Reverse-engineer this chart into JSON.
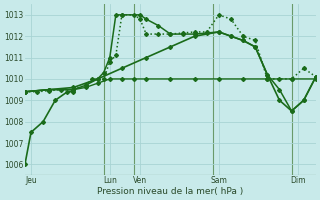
{
  "background_color": "#c8eaea",
  "grid_color": "#a8d4d4",
  "line_color": "#1a6b1a",
  "vline_color": "#6a9a6a",
  "title": "Pression niveau de la mer( hPa )",
  "ylim": [
    1005.5,
    1013.5
  ],
  "yticks": [
    1006,
    1007,
    1008,
    1009,
    1010,
    1011,
    1012,
    1013
  ],
  "xlim": [
    0,
    24
  ],
  "xtick_labels": [
    "Jeu",
    "Lun",
    "Ven",
    "Sam",
    "Dim"
  ],
  "xtick_positions": [
    0.5,
    7,
    9.5,
    16,
    22.5
  ],
  "vlines": [
    6.5,
    9,
    15.5,
    22
  ],
  "series": [
    {
      "x": [
        0,
        2,
        4,
        5,
        6,
        7,
        8,
        9,
        10,
        12,
        14,
        16,
        18,
        20,
        22,
        24
      ],
      "y": [
        1009.4,
        1009.5,
        1009.5,
        1009.6,
        1009.8,
        1010.0,
        1010.0,
        1010.0,
        1010.0,
        1010.0,
        1010.0,
        1010.0,
        1010.0,
        1010.0,
        1010.0,
        1010.0
      ],
      "marker": "D",
      "linestyle": "-",
      "linewidth": 1.0,
      "markersize": 2.0
    },
    {
      "x": [
        0,
        1,
        2,
        3,
        4,
        5,
        5.5,
        6.5,
        7,
        7.5,
        8,
        9,
        9.5,
        10,
        11,
        12,
        13,
        14,
        15,
        16,
        17,
        18,
        19,
        20,
        21,
        22,
        23,
        24
      ],
      "y": [
        1009.4,
        1009.4,
        1009.45,
        1009.5,
        1009.5,
        1009.7,
        1010.0,
        1010.0,
        1010.8,
        1011.1,
        1013.0,
        1013.0,
        1012.8,
        1012.1,
        1012.1,
        1012.1,
        1012.15,
        1012.2,
        1012.2,
        1013.0,
        1012.8,
        1012.0,
        1011.8,
        1010.0,
        1010.0,
        1010.0,
        1010.5,
        1010.1
      ],
      "marker": "D",
      "linestyle": ":",
      "linewidth": 1.1,
      "markersize": 2.0
    },
    {
      "x": [
        0,
        2,
        4,
        5,
        6,
        6.5,
        7,
        7.5,
        8,
        9.5,
        10,
        11,
        12,
        13,
        14,
        15,
        16,
        17,
        18,
        19,
        20,
        21,
        22,
        23,
        24
      ],
      "y": [
        1009.4,
        1009.5,
        1009.5,
        1009.7,
        1010.0,
        1010.3,
        1011.0,
        1013.0,
        1013.0,
        1013.0,
        1012.8,
        1012.5,
        1012.1,
        1012.1,
        1012.1,
        1012.15,
        1012.2,
        1012.0,
        1011.8,
        1011.5,
        1010.2,
        1009.5,
        1008.5,
        1009.0,
        1010.1
      ],
      "marker": "D",
      "linestyle": "-",
      "linewidth": 1.1,
      "markersize": 2.0
    },
    {
      "x": [
        0,
        2,
        4,
        6,
        8,
        10,
        12,
        14,
        16,
        17,
        18,
        19,
        20,
        21,
        22,
        23,
        24
      ],
      "y": [
        1009.4,
        1009.5,
        1009.6,
        1010.0,
        1010.5,
        1011.0,
        1011.5,
        1012.0,
        1012.2,
        1012.0,
        1011.8,
        1011.5,
        1010.2,
        1009.0,
        1008.5,
        1009.0,
        1010.1
      ],
      "marker": "D",
      "linestyle": "-",
      "linewidth": 1.2,
      "markersize": 2.0
    }
  ],
  "left_series": {
    "x": [
      0,
      0.5,
      1.5,
      2.5,
      3.5,
      4.0
    ],
    "y": [
      1006.0,
      1007.5,
      1008.0,
      1009.0,
      1009.4,
      1009.4
    ],
    "marker": "D",
    "linestyle": "-",
    "linewidth": 1.2,
    "markersize": 2.0
  }
}
